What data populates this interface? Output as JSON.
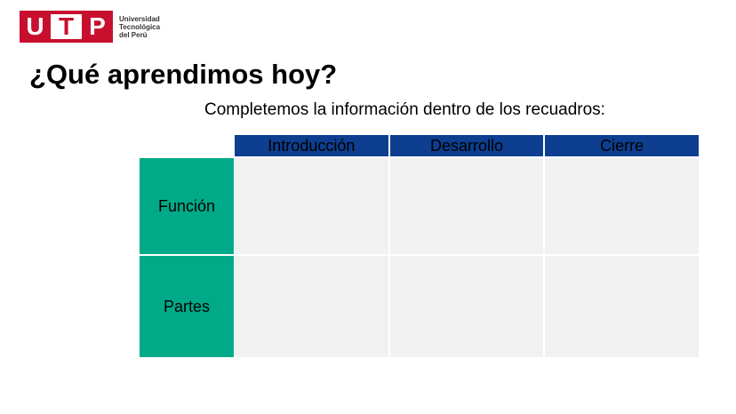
{
  "logo": {
    "letters": [
      "U",
      "T",
      "P"
    ],
    "lines": [
      "Universidad",
      "Tecnológica",
      "del Perú"
    ],
    "brand_color": "#c8102e"
  },
  "title": "¿Qué aprendimos hoy?",
  "subtitle": "Completemos la información dentro de los recuadros:",
  "table": {
    "header_color": "#0d3e8f",
    "row_label_color": "#00aa88",
    "cell_color": "#f1f1f1",
    "columns": [
      "Introducción",
      "Desarrollo",
      "Cierre"
    ],
    "rows": [
      {
        "label": "Función",
        "cells": [
          "",
          "",
          ""
        ]
      },
      {
        "label": "Partes",
        "cells": [
          "",
          "",
          ""
        ]
      }
    ]
  }
}
